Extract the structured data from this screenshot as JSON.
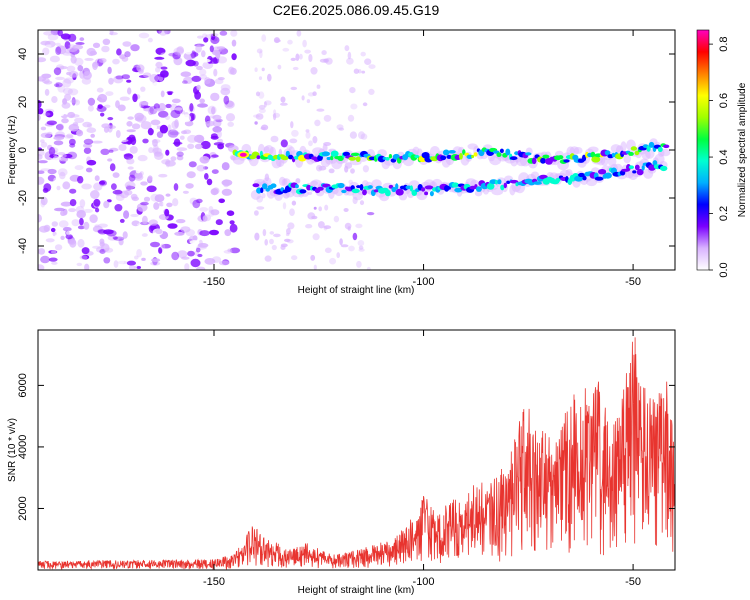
{
  "title": "C2E6.2025.086.09.45.G19",
  "chart_data": [
    {
      "type": "heatmap",
      "xlabel": "Height of straight line (km)",
      "ylabel": "Frequency (Hz)",
      "xlim": [
        -192,
        -40
      ],
      "ylim": [
        -50,
        50
      ],
      "xticks": [
        -150,
        -100,
        -50
      ],
      "yticks": [
        -40,
        -20,
        0,
        20,
        40
      ],
      "colorbar": {
        "label": "Normalized spectral amplitude",
        "range": [
          0,
          0.85
        ],
        "ticks": [
          "0.0",
          "0.2",
          "0.4",
          "0.6",
          "0.8"
        ],
        "colors": [
          "#ffffff",
          "#d9b3ff",
          "#7a00ff",
          "#0000ff",
          "#00b0ff",
          "#00ffd0",
          "#00ff40",
          "#a0ff00",
          "#ffff00",
          "#ff8000",
          "#ff0000",
          "#ff00c0"
        ]
      },
      "ridges": [
        {
          "name": "",
          "x": [
            -145,
            -130,
            -115,
            -100,
            -85,
            -70,
            -55,
            -42
          ],
          "y": [
            -2,
            -3,
            -3,
            -3,
            -1,
            -4,
            -2,
            2
          ]
        },
        {
          "name": "",
          "x": [
            -140,
            -120,
            -100,
            -80,
            -60,
            -42
          ],
          "y": [
            -16,
            -16,
            -17,
            -14,
            -11,
            -6
          ]
        }
      ],
      "noise_region": {
        "x": [
          -192,
          -145
        ],
        "y": [
          -50,
          50
        ]
      },
      "peak": {
        "x": -143,
        "y": -2,
        "value": 0.82
      }
    },
    {
      "type": "line",
      "xlabel": "Height of straight line (km)",
      "ylabel": "SNR (10 * v/v)",
      "xlim": [
        -192,
        -40
      ],
      "ylim": [
        0,
        7800
      ],
      "xticks": [
        -150,
        -100,
        -50
      ],
      "yticks": [
        2000,
        4000,
        6000
      ],
      "series": [
        {
          "color": "#e8342f",
          "envelope_x": [
            -192,
            -170,
            -150,
            -146,
            -143,
            -141,
            -138,
            -132,
            -128,
            -122,
            -115,
            -108,
            -102,
            -100,
            -96,
            -90,
            -85,
            -80,
            -76,
            -72,
            -68,
            -65,
            -62,
            -60,
            -58,
            -55,
            -52,
            -50,
            -48,
            -45,
            -42,
            -40
          ],
          "envelope_y": [
            300,
            320,
            350,
            500,
            900,
            1600,
            1100,
            700,
            900,
            500,
            700,
            1000,
            1800,
            2500,
            2000,
            2600,
            3000,
            3400,
            5700,
            4600,
            4200,
            5800,
            5600,
            7000,
            6000,
            4500,
            6400,
            7800,
            6800,
            5500,
            6200,
            4200
          ]
        }
      ]
    }
  ]
}
